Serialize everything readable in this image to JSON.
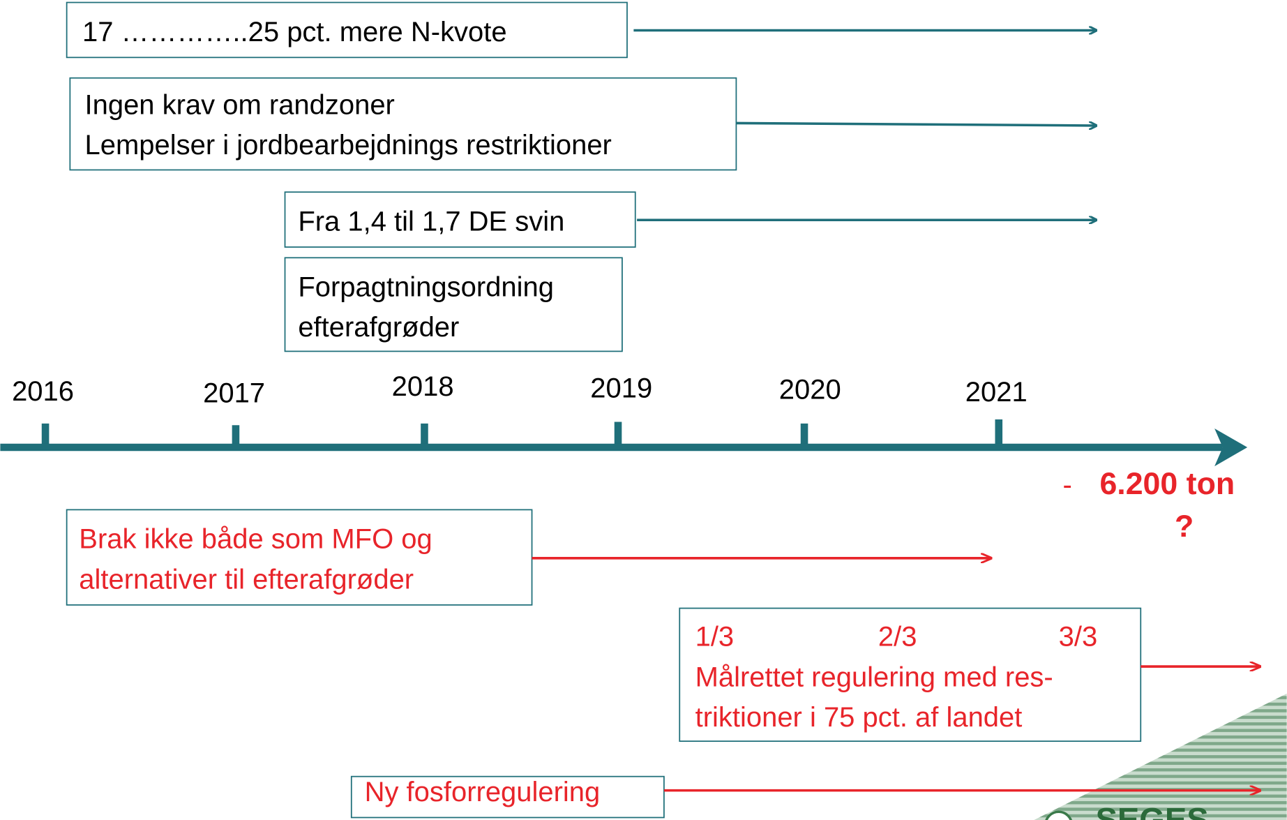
{
  "boxes": [
    {
      "lines": [
        "17 …………..25 pct.  mere N-kvote"
      ]
    },
    {
      "lines": [
        "Ingen krav om randzoner",
        "Lempelser i jordbearbejdnings restriktioner"
      ]
    },
    {
      "lines": [
        "Fra 1,4 til 1,7 DE svin"
      ]
    },
    {
      "lines": [
        "Forpagtningsordning",
        "efterafgrøder"
      ]
    },
    {
      "lines": [
        "Brak ikke både som MFO og",
        "alternativer til efterafgrøder"
      ]
    },
    {
      "fractions": [
        "1/3",
        "2/3",
        "3/3"
      ],
      "lines": [
        "Målrettet regulering med res-",
        "triktioner i 75 pct. af landet"
      ]
    },
    {
      "lines": [
        "Ny fosforregulering"
      ]
    }
  ],
  "timeline": {
    "years": [
      "2016",
      "2017",
      "2018",
      "2019",
      "2020",
      "2021"
    ]
  },
  "target": {
    "dash": "-",
    "value": "6.200 ton",
    "question": "?"
  },
  "logo": {
    "name": "SEGES"
  }
}
